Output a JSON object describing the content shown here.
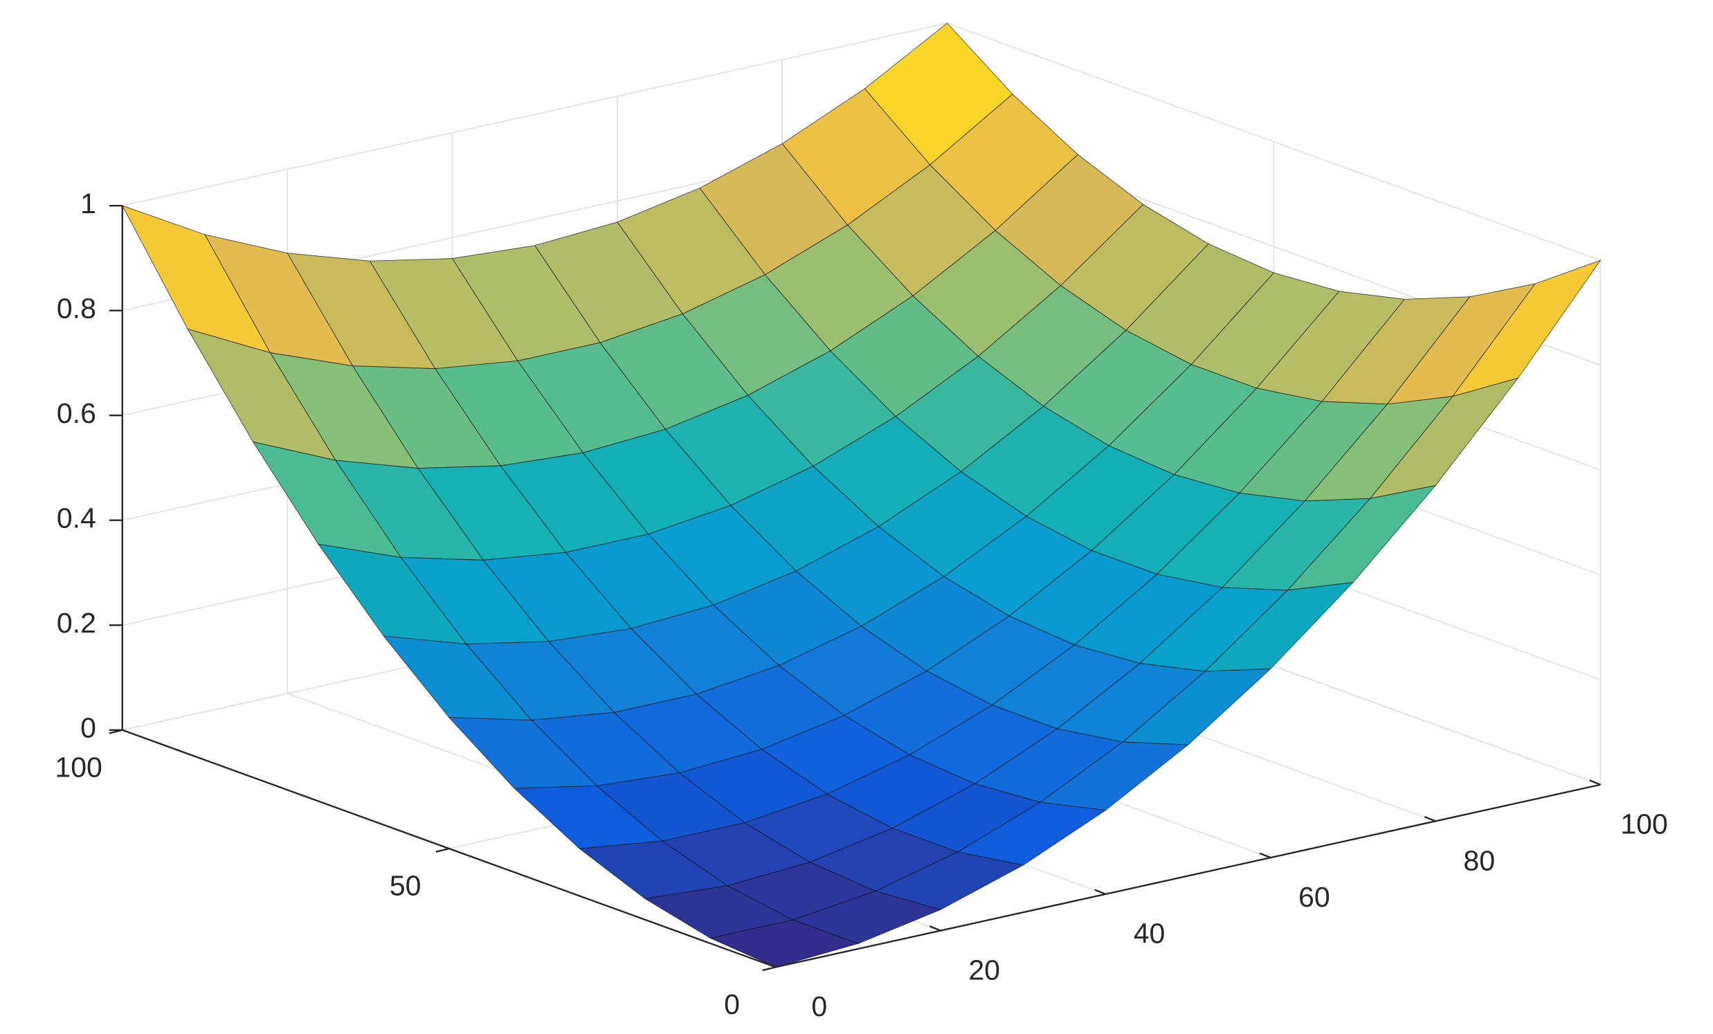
{
  "chart_data": {
    "type": "surface",
    "x": [
      0,
      10,
      20,
      30,
      40,
      50,
      60,
      70,
      80,
      90,
      100
    ],
    "y": [
      0,
      10,
      20,
      30,
      40,
      50,
      60,
      70,
      80,
      90,
      100
    ],
    "z": [
      [
        0,
        0.01,
        0.04,
        0.09,
        0.16,
        0.25,
        0.36,
        0.49,
        0.64,
        0.81,
        1
      ],
      [
        0.01,
        0.01,
        0.03,
        0.07,
        0.13,
        0.21,
        0.31,
        0.43,
        0.57,
        0.73,
        0.91
      ],
      [
        0.04,
        0.03,
        0.04,
        0.07,
        0.12,
        0.19,
        0.28,
        0.39,
        0.52,
        0.67,
        0.84
      ],
      [
        0.09,
        0.07,
        0.07,
        0.09,
        0.13,
        0.19,
        0.27,
        0.37,
        0.49,
        0.63,
        0.79
      ],
      [
        0.16,
        0.13,
        0.12,
        0.13,
        0.16,
        0.21,
        0.28,
        0.37,
        0.48,
        0.61,
        0.76
      ],
      [
        0.25,
        0.21,
        0.19,
        0.19,
        0.21,
        0.25,
        0.31,
        0.39,
        0.49,
        0.61,
        0.75
      ],
      [
        0.36,
        0.31,
        0.28,
        0.27,
        0.28,
        0.31,
        0.36,
        0.43,
        0.52,
        0.63,
        0.76
      ],
      [
        0.49,
        0.43,
        0.39,
        0.37,
        0.37,
        0.39,
        0.43,
        0.49,
        0.57,
        0.67,
        0.79
      ],
      [
        0.64,
        0.57,
        0.52,
        0.49,
        0.48,
        0.49,
        0.52,
        0.57,
        0.64,
        0.73,
        0.84
      ],
      [
        0.81,
        0.73,
        0.67,
        0.63,
        0.61,
        0.61,
        0.63,
        0.67,
        0.73,
        0.81,
        0.91
      ],
      [
        1,
        0.91,
        0.84,
        0.79,
        0.76,
        0.75,
        0.76,
        0.79,
        0.84,
        0.91,
        1
      ]
    ],
    "xlim": [
      0,
      100
    ],
    "xticks": [
      0,
      20,
      40,
      60,
      80,
      100
    ],
    "ylim": [
      0,
      100
    ],
    "yticks": [
      0,
      50,
      100
    ],
    "zlim": [
      0,
      1
    ],
    "zticks": [
      0,
      0.2,
      0.4,
      0.6,
      0.8,
      1
    ],
    "grid": true,
    "colormap": "parula"
  }
}
